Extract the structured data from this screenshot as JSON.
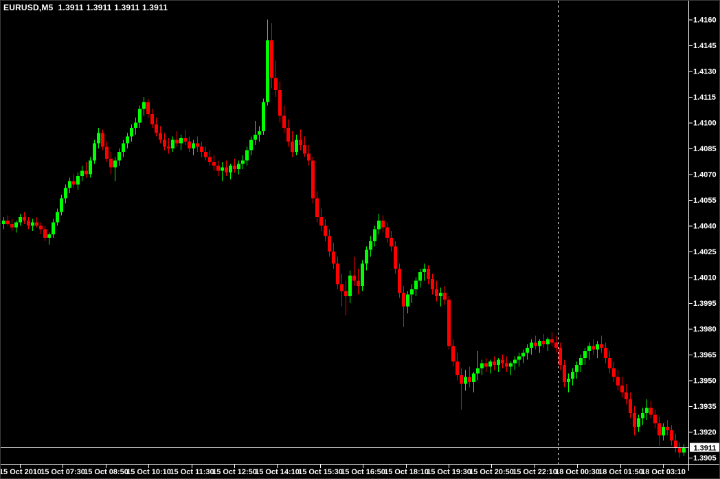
{
  "window_title": "EURUSD,M5",
  "chart_data": {
    "type": "candlestick",
    "title": "EURUSD,M5  1.3911 1.3911 1.3911 1.3911",
    "symbol": "EURUSD",
    "timeframe": "M5",
    "current_price": 1.3911,
    "current_price_label": "1.3911",
    "legend_position": "top-left",
    "grid": false,
    "ylim": [
      1.3905,
      1.416
    ],
    "colors": {
      "up": "#00FF00",
      "down": "#FF0000",
      "background": "#000000",
      "text": "#FFFFFF",
      "frame": "#FFFFFF",
      "price_line": "#FFFFFF",
      "separator": "#FFFFFF",
      "tag_bg": "#FFFFFF",
      "tag_text": "#000000"
    },
    "y_axis": {
      "labels": [
        "1.4160",
        "1.4145",
        "1.4130",
        "1.4115",
        "1.4100",
        "1.4085",
        "1.4070",
        "1.4055",
        "1.4040",
        "1.4025",
        "1.4010",
        "1.3995",
        "1.3980",
        "1.3965",
        "1.3950",
        "1.3935",
        "1.3920",
        "1.3905"
      ]
    },
    "x_axis": {
      "labels": [
        "15 Oct 2010",
        "15 Oct 07:30",
        "15 Oct 08:50",
        "15 Oct 10:10",
        "15 Oct 11:30",
        "15 Oct 12:50",
        "15 Oct 14:10",
        "15 Oct 15:30",
        "15 Oct 16:50",
        "15 Oct 18:10",
        "15 Oct 19:30",
        "15 Oct 20:50",
        "15 Oct 22:10",
        "18 Oct 00:30",
        "18 Oct 01:50",
        "18 Oct 03:10"
      ]
    },
    "separator_after_index": 134,
    "candles": [
      [
        1.4041,
        1.4045,
        1.4038,
        1.4043
      ],
      [
        1.4043,
        1.4046,
        1.404,
        1.4041
      ],
      [
        1.4041,
        1.4044,
        1.4037,
        1.4039
      ],
      [
        1.4039,
        1.4043,
        1.4036,
        1.4042
      ],
      [
        1.4042,
        1.4047,
        1.404,
        1.4045
      ],
      [
        1.4045,
        1.4048,
        1.4041,
        1.4043
      ],
      [
        1.4043,
        1.4045,
        1.4038,
        1.404
      ],
      [
        1.404,
        1.4044,
        1.4037,
        1.4042
      ],
      [
        1.4042,
        1.4045,
        1.4039,
        1.404
      ],
      [
        1.404,
        1.4042,
        1.4035,
        1.4038
      ],
      [
        1.4038,
        1.404,
        1.4031,
        1.4033
      ],
      [
        1.4033,
        1.4036,
        1.4029,
        1.4035
      ],
      [
        1.4035,
        1.4044,
        1.4033,
        1.4042
      ],
      [
        1.4042,
        1.405,
        1.404,
        1.4048
      ],
      [
        1.4048,
        1.4058,
        1.4046,
        1.4056
      ],
      [
        1.4056,
        1.4064,
        1.4053,
        1.4062
      ],
      [
        1.4062,
        1.4068,
        1.4059,
        1.4066
      ],
      [
        1.4066,
        1.407,
        1.4062,
        1.4064
      ],
      [
        1.4064,
        1.4071,
        1.4061,
        1.4069
      ],
      [
        1.4069,
        1.4075,
        1.4066,
        1.4072
      ],
      [
        1.4072,
        1.4077,
        1.4068,
        1.407
      ],
      [
        1.407,
        1.408,
        1.4068,
        1.4078
      ],
      [
        1.4078,
        1.409,
        1.4076,
        1.4088
      ],
      [
        1.4088,
        1.4097,
        1.4085,
        1.4094
      ],
      [
        1.4094,
        1.4096,
        1.4084,
        1.4086
      ],
      [
        1.4086,
        1.4089,
        1.4077,
        1.4079
      ],
      [
        1.4079,
        1.4083,
        1.407,
        1.4074
      ],
      [
        1.4074,
        1.408,
        1.4066,
        1.4078
      ],
      [
        1.4078,
        1.4085,
        1.4075,
        1.4083
      ],
      [
        1.4083,
        1.409,
        1.408,
        1.4088
      ],
      [
        1.4088,
        1.4094,
        1.4085,
        1.4092
      ],
      [
        1.4092,
        1.4099,
        1.4089,
        1.4097
      ],
      [
        1.4097,
        1.4103,
        1.4093,
        1.41
      ],
      [
        1.41,
        1.411,
        1.4097,
        1.4108
      ],
      [
        1.4108,
        1.4115,
        1.4104,
        1.4112
      ],
      [
        1.4112,
        1.4114,
        1.4103,
        1.4105
      ],
      [
        1.4105,
        1.4108,
        1.4097,
        1.4099
      ],
      [
        1.4099,
        1.4103,
        1.4092,
        1.4094
      ],
      [
        1.4094,
        1.4098,
        1.4088,
        1.409
      ],
      [
        1.409,
        1.4094,
        1.4084,
        1.4086
      ],
      [
        1.4086,
        1.4091,
        1.4082,
        1.4085
      ],
      [
        1.4085,
        1.4092,
        1.4083,
        1.409
      ],
      [
        1.409,
        1.4095,
        1.4086,
        1.4088
      ],
      [
        1.4088,
        1.4093,
        1.4084,
        1.4091
      ],
      [
        1.4091,
        1.4096,
        1.4087,
        1.4089
      ],
      [
        1.4089,
        1.4092,
        1.4083,
        1.4085
      ],
      [
        1.4085,
        1.409,
        1.4081,
        1.4088
      ],
      [
        1.4088,
        1.4092,
        1.4083,
        1.4086
      ],
      [
        1.4086,
        1.4089,
        1.408,
        1.4083
      ],
      [
        1.4083,
        1.4086,
        1.4078,
        1.408
      ],
      [
        1.408,
        1.4084,
        1.4075,
        1.4077
      ],
      [
        1.4077,
        1.4081,
        1.4072,
        1.4075
      ],
      [
        1.4075,
        1.4078,
        1.4069,
        1.4072
      ],
      [
        1.4072,
        1.4077,
        1.4066,
        1.4074
      ],
      [
        1.4074,
        1.4078,
        1.4069,
        1.4071
      ],
      [
        1.4071,
        1.4076,
        1.4067,
        1.4075
      ],
      [
        1.4075,
        1.4079,
        1.4071,
        1.4073
      ],
      [
        1.4073,
        1.4078,
        1.407,
        1.4076
      ],
      [
        1.4076,
        1.4081,
        1.4073,
        1.4078
      ],
      [
        1.4078,
        1.4086,
        1.4075,
        1.4084
      ],
      [
        1.4084,
        1.4092,
        1.4081,
        1.409
      ],
      [
        1.409,
        1.4101,
        1.4087,
        1.4093
      ],
      [
        1.4093,
        1.4098,
        1.4089,
        1.4095
      ],
      [
        1.4095,
        1.4114,
        1.4093,
        1.4112
      ],
      [
        1.4112,
        1.416,
        1.411,
        1.4148
      ],
      [
        1.4148,
        1.4158,
        1.412,
        1.4126
      ],
      [
        1.4126,
        1.4136,
        1.4115,
        1.4119
      ],
      [
        1.4119,
        1.4124,
        1.41,
        1.4104
      ],
      [
        1.4104,
        1.411,
        1.4094,
        1.4097
      ],
      [
        1.4097,
        1.4102,
        1.4086,
        1.4089
      ],
      [
        1.4089,
        1.4095,
        1.408,
        1.4083
      ],
      [
        1.4083,
        1.4093,
        1.4081,
        1.409
      ],
      [
        1.409,
        1.4096,
        1.4084,
        1.4087
      ],
      [
        1.4087,
        1.4092,
        1.408,
        1.4082
      ],
      [
        1.4082,
        1.4087,
        1.4075,
        1.4078
      ],
      [
        1.4078,
        1.408,
        1.4053,
        1.4056
      ],
      [
        1.4056,
        1.406,
        1.4042,
        1.4045
      ],
      [
        1.4045,
        1.405,
        1.4037,
        1.404
      ],
      [
        1.404,
        1.4044,
        1.4031,
        1.4034
      ],
      [
        1.4034,
        1.4038,
        1.4022,
        1.4025
      ],
      [
        1.4025,
        1.403,
        1.4015,
        1.4018
      ],
      [
        1.4018,
        1.4022,
        1.4003,
        1.4006
      ],
      [
        1.4006,
        1.4012,
        1.3993,
        1.4002
      ],
      [
        1.4002,
        1.4008,
        1.3988,
        1.3999
      ],
      [
        1.3999,
        1.4014,
        1.3995,
        1.4011
      ],
      [
        1.4011,
        1.4022,
        1.4005,
        1.4008
      ],
      [
        1.4008,
        1.4015,
        1.4,
        1.4005
      ],
      [
        1.4005,
        1.402,
        1.4002,
        1.4018
      ],
      [
        1.4018,
        1.4028,
        1.4014,
        1.4026
      ],
      [
        1.4026,
        1.4034,
        1.4022,
        1.4031
      ],
      [
        1.4031,
        1.404,
        1.4028,
        1.4038
      ],
      [
        1.4038,
        1.4047,
        1.4035,
        1.4043
      ],
      [
        1.4043,
        1.4046,
        1.4036,
        1.4039
      ],
      [
        1.4039,
        1.4042,
        1.403,
        1.4033
      ],
      [
        1.4033,
        1.4037,
        1.4025,
        1.4028
      ],
      [
        1.4028,
        1.4031,
        1.4012,
        1.4015
      ],
      [
        1.4015,
        1.4018,
        1.3998,
        1.4001
      ],
      [
        1.4001,
        1.4005,
        1.3981,
        1.3993
      ],
      [
        1.3993,
        1.4002,
        1.3989,
        1.4
      ],
      [
        1.4,
        1.4006,
        1.3995,
        1.4003
      ],
      [
        1.4003,
        1.401,
        1.3999,
        1.4008
      ],
      [
        1.4008,
        1.4015,
        1.4004,
        1.4013
      ],
      [
        1.4013,
        1.4018,
        1.4008,
        1.4015
      ],
      [
        1.4015,
        1.4017,
        1.4006,
        1.4009
      ],
      [
        1.4009,
        1.4012,
        1.4,
        1.4003
      ],
      [
        1.4003,
        1.4008,
        1.3996,
        1.3999
      ],
      [
        1.3999,
        1.4004,
        1.3993,
        1.4001
      ],
      [
        1.4001,
        1.4005,
        1.3994,
        1.3997
      ],
      [
        1.3997,
        1.3999,
        1.3968,
        1.397
      ],
      [
        1.397,
        1.3974,
        1.3958,
        1.3961
      ],
      [
        1.3961,
        1.3966,
        1.395,
        1.3953
      ],
      [
        1.3953,
        1.3957,
        1.3933,
        1.3948
      ],
      [
        1.3948,
        1.3956,
        1.3944,
        1.3952
      ],
      [
        1.3952,
        1.3958,
        1.3946,
        1.3949
      ],
      [
        1.3949,
        1.3955,
        1.3943,
        1.3954
      ],
      [
        1.3954,
        1.3967,
        1.395,
        1.3957
      ],
      [
        1.3957,
        1.3962,
        1.3953,
        1.396
      ],
      [
        1.396,
        1.3963,
        1.3955,
        1.3958
      ],
      [
        1.3958,
        1.3962,
        1.3954,
        1.3961
      ],
      [
        1.3961,
        1.3964,
        1.3956,
        1.3959
      ],
      [
        1.3959,
        1.3963,
        1.3955,
        1.3962
      ],
      [
        1.3962,
        1.3965,
        1.3957,
        1.396
      ],
      [
        1.396,
        1.3964,
        1.3955,
        1.3958
      ],
      [
        1.3958,
        1.3961,
        1.3953,
        1.396
      ],
      [
        1.396,
        1.3964,
        1.3956,
        1.3962
      ],
      [
        1.3962,
        1.3966,
        1.3958,
        1.3964
      ],
      [
        1.3964,
        1.3968,
        1.396,
        1.3966
      ],
      [
        1.3966,
        1.3971,
        1.3962,
        1.3969
      ],
      [
        1.3969,
        1.3974,
        1.3965,
        1.3972
      ],
      [
        1.3972,
        1.3976,
        1.3968,
        1.397
      ],
      [
        1.397,
        1.3974,
        1.3966,
        1.3973
      ],
      [
        1.3973,
        1.3977,
        1.3969,
        1.3971
      ],
      [
        1.3971,
        1.3975,
        1.3967,
        1.3974
      ],
      [
        1.3974,
        1.3978,
        1.397,
        1.3972
      ],
      [
        1.3972,
        1.3976,
        1.3966,
        1.3969
      ],
      [
        1.3969,
        1.3972,
        1.3956,
        1.3959
      ],
      [
        1.3959,
        1.3962,
        1.3946,
        1.3949
      ],
      [
        1.3949,
        1.3954,
        1.3943,
        1.3951
      ],
      [
        1.3951,
        1.3957,
        1.3947,
        1.3955
      ],
      [
        1.3955,
        1.3961,
        1.3951,
        1.3959
      ],
      [
        1.3959,
        1.3965,
        1.3955,
        1.3963
      ],
      [
        1.3963,
        1.3969,
        1.3959,
        1.3967
      ],
      [
        1.3967,
        1.3972,
        1.3962,
        1.397
      ],
      [
        1.397,
        1.3974,
        1.3965,
        1.3968
      ],
      [
        1.3968,
        1.3973,
        1.3963,
        1.3971
      ],
      [
        1.3971,
        1.3976,
        1.3966,
        1.3969
      ],
      [
        1.3969,
        1.3972,
        1.396,
        1.3963
      ],
      [
        1.3963,
        1.3967,
        1.3954,
        1.3957
      ],
      [
        1.3957,
        1.3961,
        1.3949,
        1.3952
      ],
      [
        1.3952,
        1.3956,
        1.3944,
        1.3947
      ],
      [
        1.3947,
        1.3952,
        1.394,
        1.3943
      ],
      [
        1.3943,
        1.3948,
        1.3936,
        1.3939
      ],
      [
        1.3939,
        1.3943,
        1.3928,
        1.3931
      ],
      [
        1.3931,
        1.3935,
        1.3918,
        1.3923
      ],
      [
        1.3923,
        1.393,
        1.392,
        1.3928
      ],
      [
        1.3928,
        1.3934,
        1.3924,
        1.3931
      ],
      [
        1.3931,
        1.3939,
        1.3927,
        1.3934
      ],
      [
        1.3934,
        1.3938,
        1.3928,
        1.393
      ],
      [
        1.393,
        1.3933,
        1.3922,
        1.3925
      ],
      [
        1.3925,
        1.3929,
        1.3912,
        1.3918
      ],
      [
        1.3918,
        1.3925,
        1.3915,
        1.3923
      ],
      [
        1.3923,
        1.3927,
        1.3918,
        1.3921
      ],
      [
        1.3921,
        1.3924,
        1.3912,
        1.3915
      ],
      [
        1.3915,
        1.3919,
        1.3908,
        1.3911
      ],
      [
        1.3911,
        1.3914,
        1.3905,
        1.3908
      ],
      [
        1.3908,
        1.3913,
        1.3906,
        1.3911
      ]
    ]
  }
}
